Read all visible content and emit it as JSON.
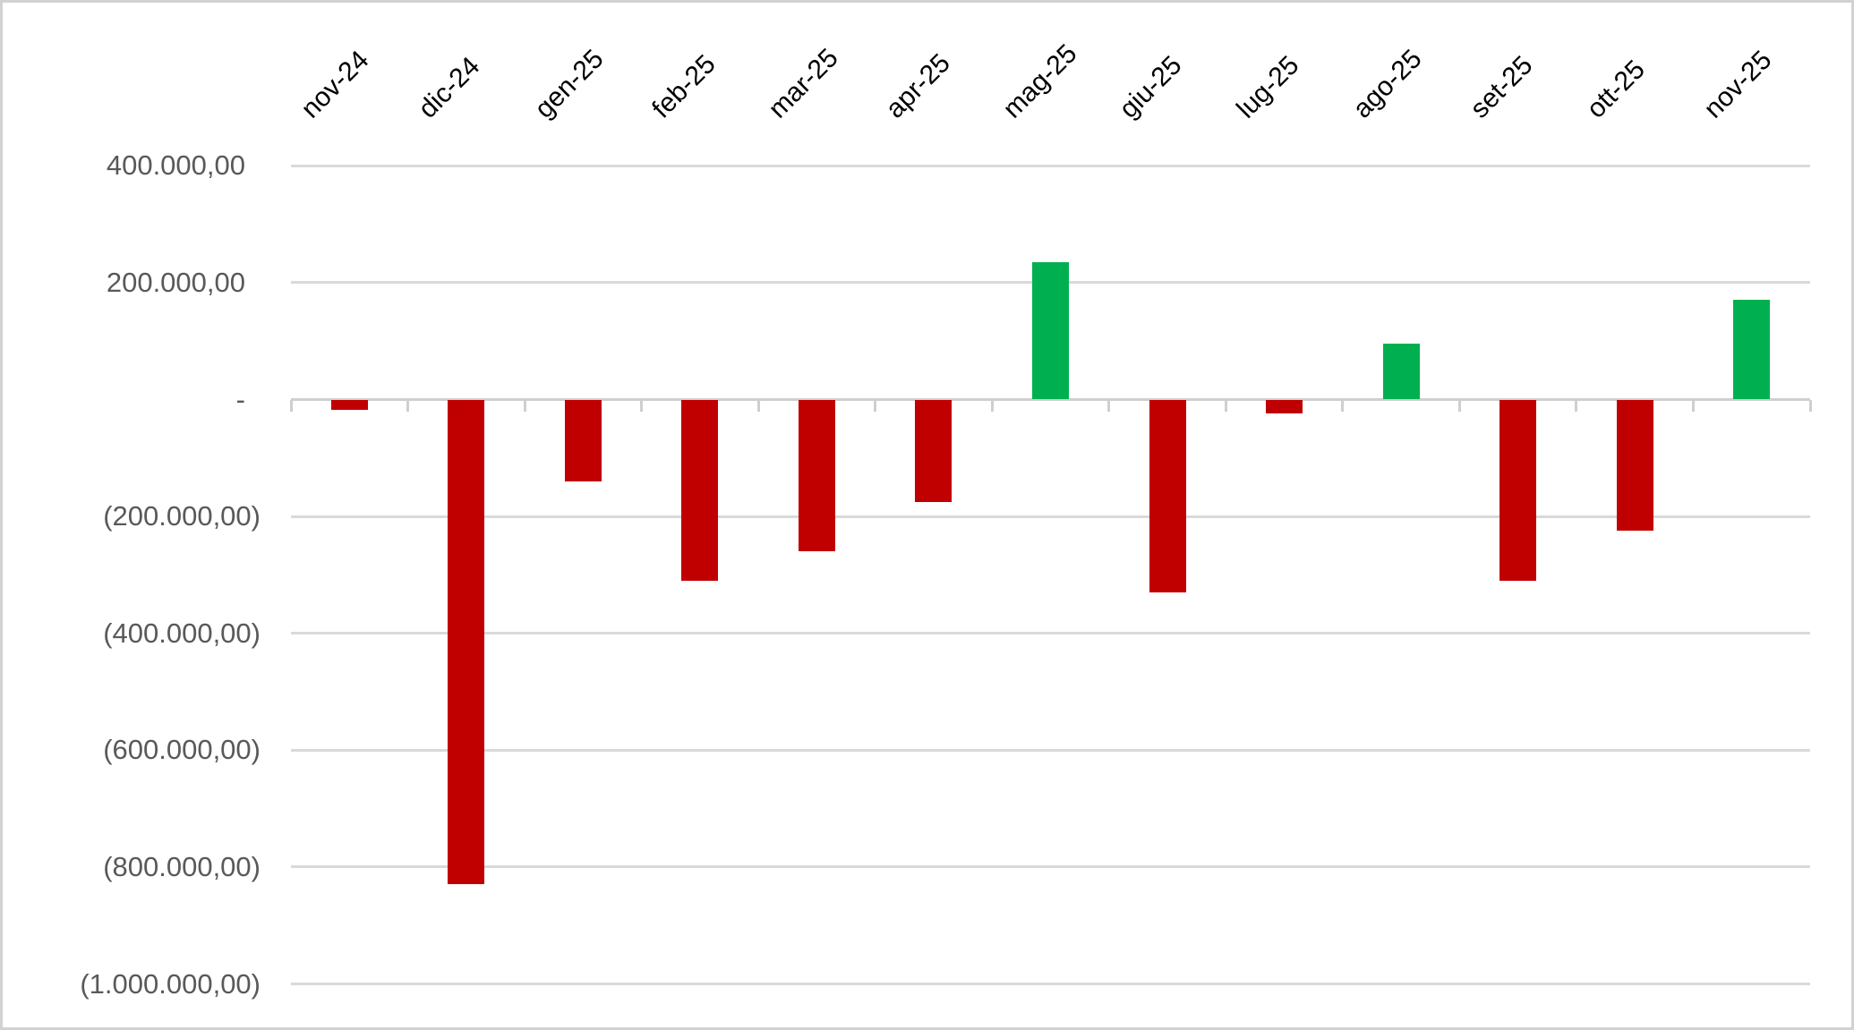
{
  "chart": {
    "background": "#FFFFFF",
    "border_color": "#D2D2D2"
  },
  "chart_data": {
    "type": "bar",
    "title": "",
    "categories": [
      "nov-24",
      "dic-24",
      "gen-25",
      "feb-25",
      "mar-25",
      "apr-25",
      "mag-25",
      "giu-25",
      "lug-25",
      "ago-25",
      "set-25",
      "ott-25",
      "nov-25"
    ],
    "values": [
      -18000,
      -830000,
      -140000,
      -310000,
      -260000,
      -175000,
      235000,
      -330000,
      -24000,
      95000,
      -310000,
      -225000,
      170000
    ],
    "series_colors": {
      "positive": "#00B050",
      "negative": "#C00000"
    },
    "y_axis": {
      "tick_labels": [
        "400.000,00",
        "200.000,00",
        "-",
        "(200.000,00)",
        "(400.000,00)",
        "(600.000,00)",
        "(800.000,00)",
        "(1.000.000,00)"
      ],
      "tick_values": [
        400000,
        200000,
        0,
        -200000,
        -400000,
        -600000,
        -800000,
        -1000000
      ],
      "range": [
        -1000000,
        400000
      ],
      "label_color": "#595959"
    },
    "x_axis": {
      "label_rotation_deg": 45,
      "label_color": "#000000",
      "labels_position": "top"
    },
    "grid": {
      "show": true,
      "color": "#D9D9D9"
    },
    "legend": {
      "show": false
    }
  }
}
